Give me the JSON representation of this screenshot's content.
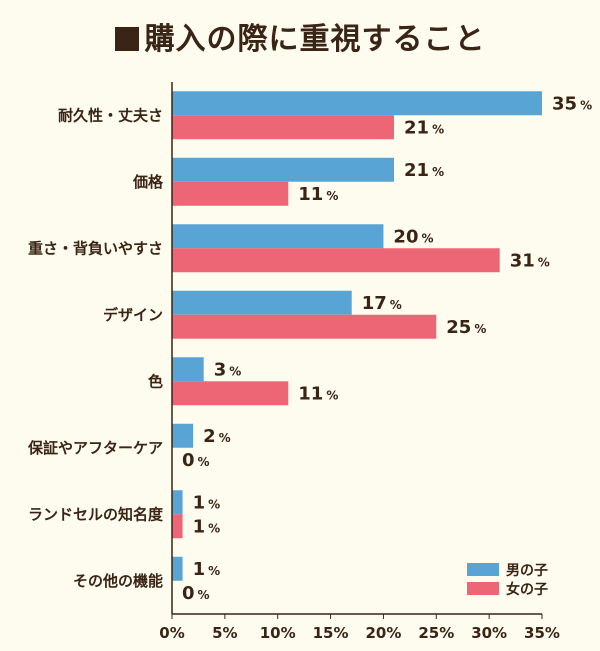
{
  "chart_data": {
    "type": "bar",
    "orientation": "horizontal",
    "title": "購入の際に重視すること",
    "categories": [
      "耐久性・丈夫さ",
      "価格",
      "重さ・背負いやすさ",
      "デザイン",
      "色",
      "保証やアフターケア",
      "ランドセルの知名度",
      "その他の機能"
    ],
    "series": [
      {
        "name": "男の子",
        "color": "#58a4d4",
        "values": [
          35,
          21,
          20,
          17,
          3,
          2,
          1,
          1
        ]
      },
      {
        "name": "女の子",
        "color": "#ec6676",
        "values": [
          21,
          11,
          31,
          25,
          11,
          0,
          1,
          0
        ]
      }
    ],
    "xlim": [
      0,
      35
    ],
    "xticks": [
      "0%",
      "5%",
      "10%",
      "15%",
      "20%",
      "25%",
      "30%",
      "35%"
    ],
    "value_suffix": "%",
    "legend": "bottom-right",
    "grid": false
  }
}
